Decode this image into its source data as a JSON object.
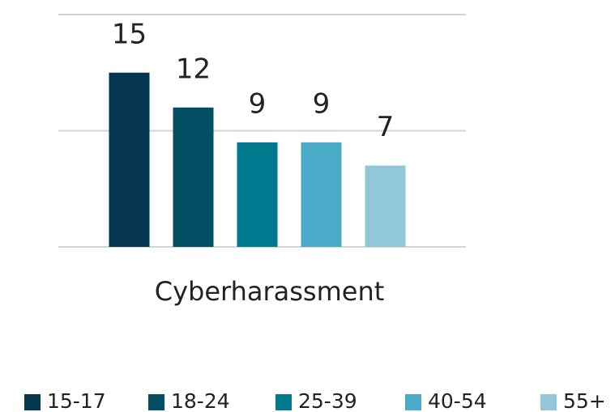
{
  "chart_data": {
    "type": "bar",
    "categories": [
      "Cyberharassment"
    ],
    "series": [
      {
        "name": "15-17",
        "color": "#04364f",
        "values": [
          15
        ]
      },
      {
        "name": "18-24",
        "color": "#024e63",
        "values": [
          12
        ]
      },
      {
        "name": "25-39",
        "color": "#017a8f",
        "values": [
          9
        ]
      },
      {
        "name": "40-54",
        "color": "#4aabc8",
        "values": [
          9
        ]
      },
      {
        "name": "55+",
        "color": "#92c7da",
        "values": [
          7
        ]
      }
    ],
    "ylim": [
      0,
      20
    ],
    "yticks": [
      0,
      10,
      20
    ],
    "grid": true,
    "legend": "bottom"
  }
}
